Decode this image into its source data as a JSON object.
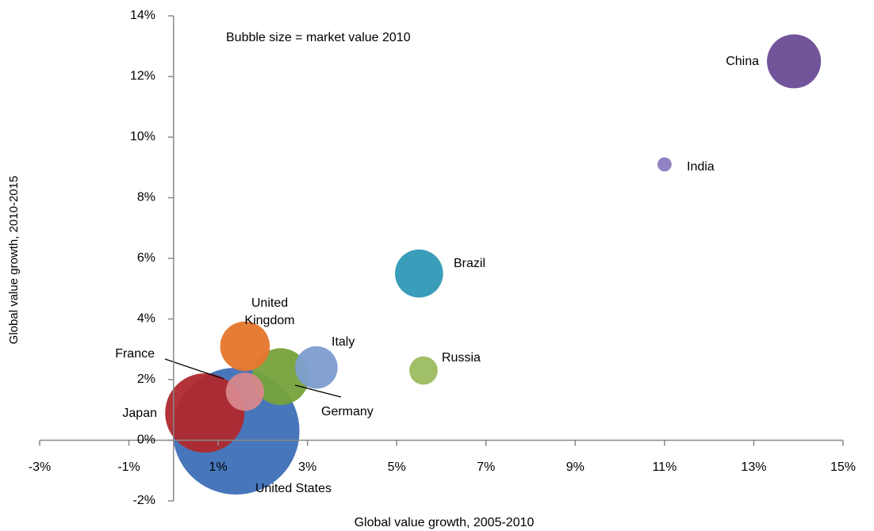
{
  "chart_data": {
    "type": "bubble",
    "annotation": "Bubble size = market value 2010",
    "x_label": "Global value growth, 2005-2010",
    "y_label": "Global value growth, 2010-2015",
    "xlim": [
      -3,
      15
    ],
    "ylim": [
      -2,
      14
    ],
    "xticks": [
      {
        "value": -3,
        "label": "-3%"
      },
      {
        "value": -1,
        "label": "-1%"
      },
      {
        "value": 1,
        "label": "1%"
      },
      {
        "value": 3,
        "label": "3%"
      },
      {
        "value": 5,
        "label": "5%"
      },
      {
        "value": 7,
        "label": "7%"
      },
      {
        "value": 9,
        "label": "9%"
      },
      {
        "value": 11,
        "label": "11%"
      },
      {
        "value": 13,
        "label": "13%"
      },
      {
        "value": 15,
        "label": "15%"
      }
    ],
    "yticks": [
      {
        "value": -2,
        "label": "-2%"
      },
      {
        "value": 0,
        "label": "0%"
      },
      {
        "value": 2,
        "label": "2%"
      },
      {
        "value": 4,
        "label": "4%"
      },
      {
        "value": 6,
        "label": "6%"
      },
      {
        "value": 8,
        "label": "8%"
      },
      {
        "value": 10,
        "label": "10%"
      },
      {
        "value": 12,
        "label": "12%"
      },
      {
        "value": 14,
        "label": "14%"
      }
    ],
    "grid": false,
    "series": [
      {
        "name": "United States",
        "color": "#3d6fb6",
        "x": 1.4,
        "y": 0.3,
        "size": 320
      },
      {
        "name": "Japan",
        "color": "#b0282d",
        "x": 0.7,
        "y": 0.9,
        "size": 125
      },
      {
        "name": "Germany",
        "color": "#76a23a",
        "x": 2.4,
        "y": 2.1,
        "size": 64
      },
      {
        "name": "United Kingdom",
        "color": "#e5762c",
        "x": 1.6,
        "y": 3.1,
        "size": 49
      },
      {
        "name": "Italy",
        "color": "#7d9dcf",
        "x": 3.2,
        "y": 2.4,
        "size": 36
      },
      {
        "name": "France",
        "color": "#d8878b",
        "x": 1.6,
        "y": 1.6,
        "size": 29
      },
      {
        "name": "Brazil",
        "color": "#2f98b6",
        "x": 5.5,
        "y": 5.5,
        "size": 46
      },
      {
        "name": "Russia",
        "color": "#9cbc5f",
        "x": 5.6,
        "y": 2.3,
        "size": 16
      },
      {
        "name": "China",
        "color": "#6a4b96",
        "x": 13.9,
        "y": 12.5,
        "size": 58
      },
      {
        "name": "India",
        "color": "#8e7cc0",
        "x": 11.0,
        "y": 9.1,
        "size": 4
      }
    ]
  }
}
